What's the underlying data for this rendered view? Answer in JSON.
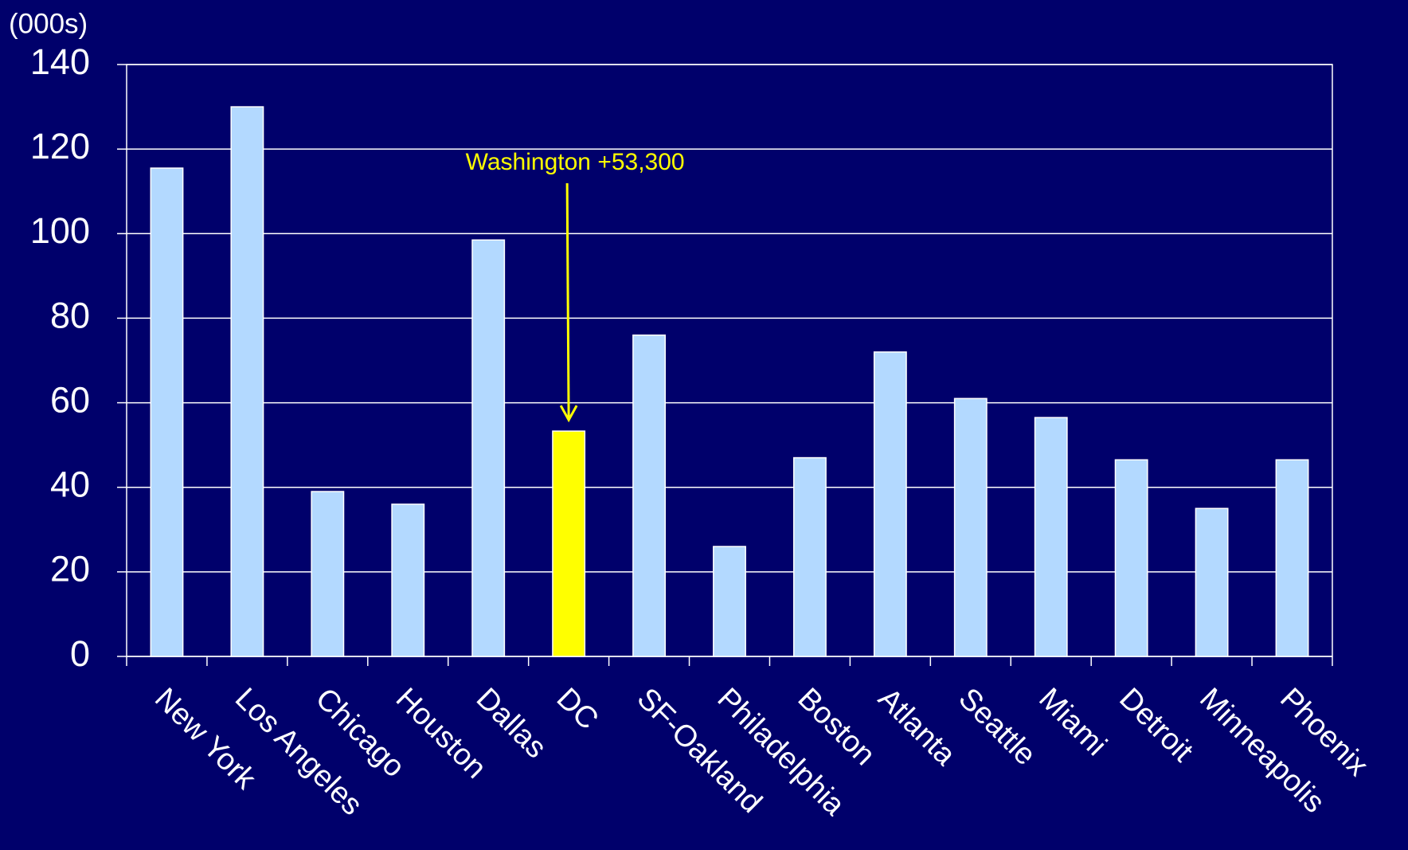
{
  "chart_data": {
    "type": "bar",
    "y_unit_label": "(000s)",
    "annotation": "Washington +53,300",
    "categories": [
      "New York",
      "Los Angeles",
      "Chicago",
      "Houston",
      "Dallas",
      "DC",
      "SF-Oakland",
      "Philadelphia",
      "Boston",
      "Atlanta",
      "Seattle",
      "Miami",
      "Detroit",
      "Minneapolis",
      "Phoenix"
    ],
    "values": [
      115.5,
      130,
      39,
      36,
      98.5,
      53.3,
      76,
      26,
      47,
      72,
      61,
      56.5,
      46.5,
      35,
      46.5
    ],
    "colors": [
      "#b3d9ff",
      "#b3d9ff",
      "#b3d9ff",
      "#b3d9ff",
      "#b3d9ff",
      "#ffff00",
      "#b3d9ff",
      "#b3d9ff",
      "#b3d9ff",
      "#b3d9ff",
      "#b3d9ff",
      "#b3d9ff",
      "#b3d9ff",
      "#b3d9ff",
      "#b3d9ff"
    ],
    "ylim": [
      0,
      140
    ],
    "yticks": [
      0,
      20,
      40,
      60,
      80,
      100,
      120,
      140
    ],
    "grid": true
  }
}
